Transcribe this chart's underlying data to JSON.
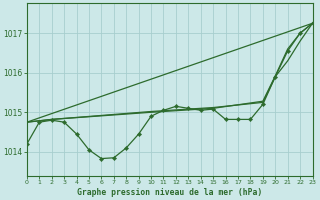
{
  "background_color": "#cce8e8",
  "plot_bg_color": "#cce8e8",
  "line_color": "#2d6b2d",
  "grid_color": "#a8cece",
  "title": "Graphe pression niveau de la mer (hPa)",
  "ylim": [
    1013.4,
    1017.75
  ],
  "xlim": [
    0,
    23
  ],
  "yticks": [
    1014,
    1015,
    1016,
    1017
  ],
  "xticks": [
    0,
    1,
    2,
    3,
    4,
    5,
    6,
    7,
    8,
    9,
    10,
    11,
    12,
    13,
    14,
    15,
    16,
    17,
    18,
    19,
    20,
    21,
    22,
    23
  ],
  "line_main": {
    "x": [
      0,
      1,
      2,
      3,
      4,
      5,
      6,
      7,
      8,
      9,
      10,
      11,
      12,
      13,
      14,
      15,
      16,
      17,
      18,
      19,
      20,
      21,
      22,
      23
    ],
    "y": [
      1014.2,
      1014.75,
      1014.8,
      1014.75,
      1014.45,
      1014.05,
      1013.83,
      1013.85,
      1014.1,
      1014.45,
      1014.9,
      1015.05,
      1015.15,
      1015.1,
      1015.05,
      1015.08,
      1014.82,
      1014.82,
      1014.82,
      1015.2,
      1015.9,
      1016.55,
      1017.0,
      1017.25
    ]
  },
  "line_straight": {
    "x": [
      0,
      23
    ],
    "y": [
      1014.75,
      1017.25
    ]
  },
  "line_smooth1": {
    "x": [
      0,
      2,
      10,
      15,
      19,
      20,
      21,
      22,
      23
    ],
    "y": [
      1014.75,
      1014.82,
      1015.0,
      1015.1,
      1015.28,
      1015.92,
      1016.6,
      1017.0,
      1017.25
    ]
  },
  "line_smooth2": {
    "x": [
      0,
      2,
      10,
      15,
      19,
      20,
      21,
      22,
      23
    ],
    "y": [
      1014.75,
      1014.82,
      1015.02,
      1015.12,
      1015.25,
      1015.9,
      1016.3,
      1016.8,
      1017.25
    ]
  }
}
